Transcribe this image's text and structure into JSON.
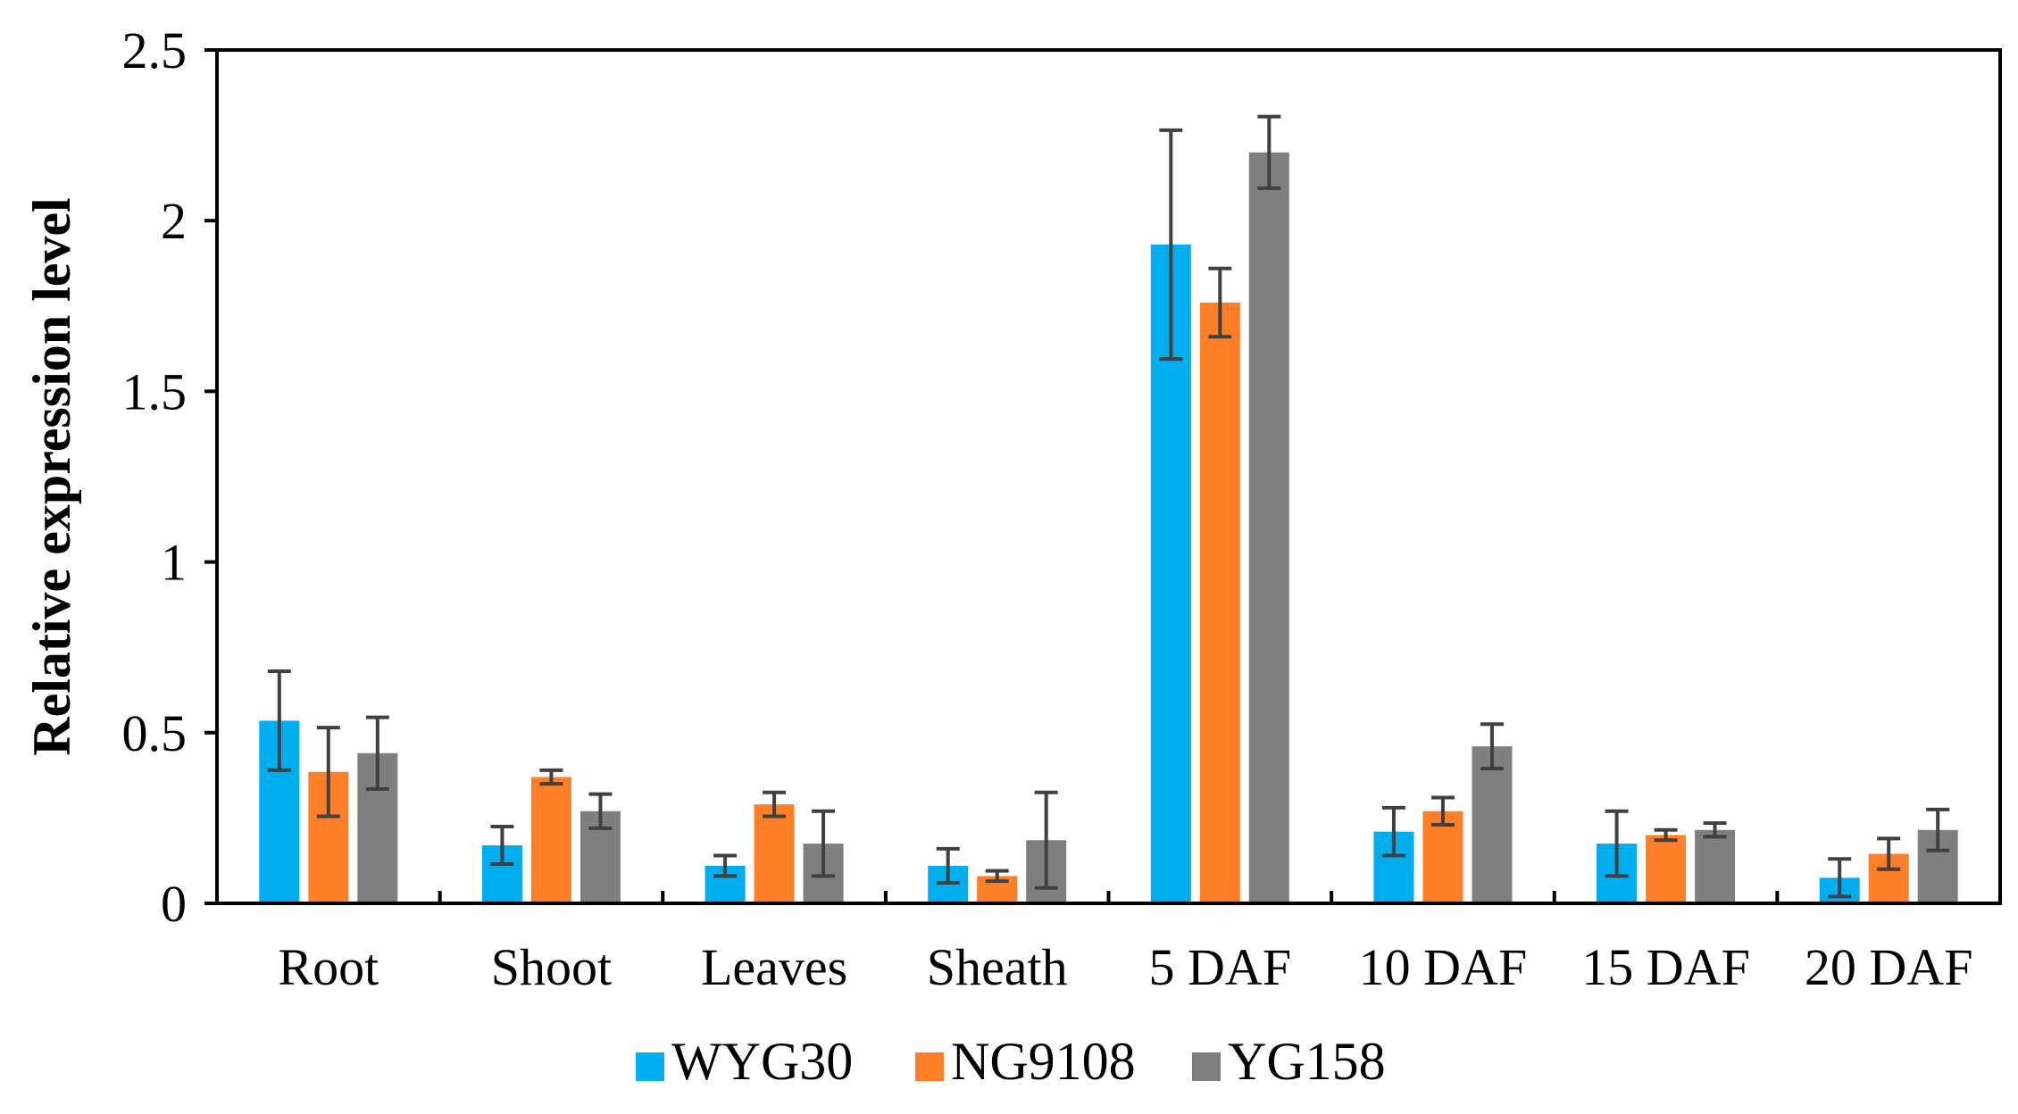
{
  "chart_data": {
    "type": "bar",
    "title": "",
    "xlabel": "",
    "ylabel": "Relative expression level",
    "ylim": [
      0,
      2.5
    ],
    "yticks": [
      0,
      0.5,
      1,
      1.5,
      2,
      2.5
    ],
    "ytick_labels": [
      "0",
      "0.5",
      "1",
      "1.5",
      "2",
      "2.5"
    ],
    "categories": [
      "Root",
      "Shoot",
      "Leaves",
      "Sheath",
      "5 DAF",
      "10 DAF",
      "15 DAF",
      "20 DAF"
    ],
    "series": [
      {
        "name": "WYG30",
        "color": "#00AEEF",
        "values": [
          0.535,
          0.17,
          0.11,
          0.11,
          1.93,
          0.21,
          0.175,
          0.075
        ],
        "errors": [
          0.145,
          0.055,
          0.03,
          0.05,
          0.335,
          0.07,
          0.095,
          0.055
        ]
      },
      {
        "name": "NG9108",
        "color": "#FF7F27",
        "values": [
          0.385,
          0.37,
          0.29,
          0.08,
          1.76,
          0.27,
          0.2,
          0.145
        ],
        "errors": [
          0.13,
          0.02,
          0.035,
          0.015,
          0.1,
          0.04,
          0.015,
          0.045
        ]
      },
      {
        "name": "YG158",
        "color": "#7F7F7F",
        "values": [
          0.44,
          0.27,
          0.175,
          0.185,
          2.2,
          0.46,
          0.215,
          0.215
        ],
        "errors": [
          0.105,
          0.05,
          0.095,
          0.14,
          0.105,
          0.065,
          0.02,
          0.06
        ]
      }
    ],
    "legend_position": "bottom-center",
    "grid": false
  }
}
